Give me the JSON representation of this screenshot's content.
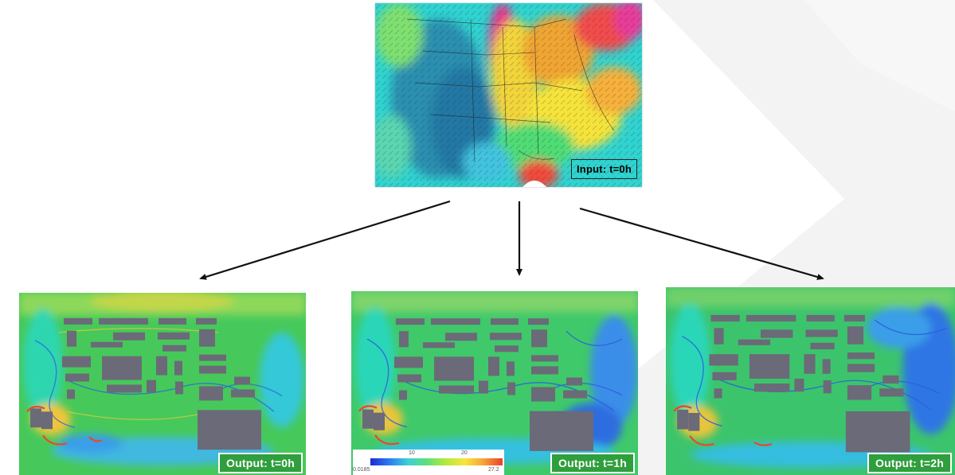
{
  "input": {
    "label": "Input: t=0h"
  },
  "outputs": [
    {
      "label": "Output: t=0h"
    },
    {
      "label": "Output: t=1h"
    },
    {
      "label": "Output: t=2h"
    }
  ],
  "colorbar": {
    "min": "0.0185",
    "tick1": "10",
    "tick2": "20",
    "max": "27.2"
  },
  "colors": {
    "label_green": "#2f9e3c",
    "building_gray": "#6b6a78"
  }
}
